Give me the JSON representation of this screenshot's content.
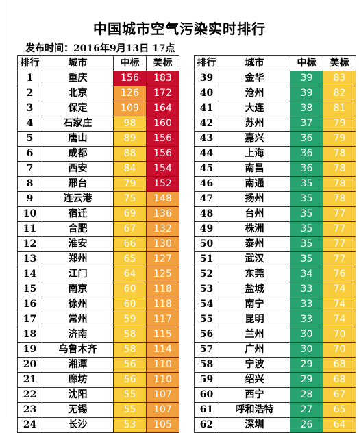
{
  "title": "中国城市空气污染实时排行",
  "publish_time": "发布时间：2016年9月13日 17点",
  "headers": {
    "rank": "排行",
    "city": "城市",
    "cn_index": "中标",
    "us_index": "美标"
  },
  "colors": {
    "red": "#c8102e",
    "orange": "#f2a03d",
    "yellow": "#f8cc3c",
    "green": "#27a36f",
    "white": "#ffffff"
  },
  "left_rows": [
    {
      "rank": "1",
      "city": "重庆",
      "cn": "156",
      "us": "183",
      "cn_color": "red",
      "us_color": "red"
    },
    {
      "rank": "2",
      "city": "北京",
      "cn": "126",
      "us": "172",
      "cn_color": "orange",
      "us_color": "red"
    },
    {
      "rank": "3",
      "city": "保定",
      "cn": "109",
      "us": "164",
      "cn_color": "orange",
      "us_color": "red"
    },
    {
      "rank": "4",
      "city": "石家庄",
      "cn": "98",
      "us": "160",
      "cn_color": "yellow",
      "us_color": "red"
    },
    {
      "rank": "5",
      "city": "唐山",
      "cn": "89",
      "us": "156",
      "cn_color": "yellow",
      "us_color": "red"
    },
    {
      "rank": "6",
      "city": "成都",
      "cn": "88",
      "us": "156",
      "cn_color": "yellow",
      "us_color": "red"
    },
    {
      "rank": "7",
      "city": "西安",
      "cn": "84",
      "us": "154",
      "cn_color": "yellow",
      "us_color": "red"
    },
    {
      "rank": "8",
      "city": "邢台",
      "cn": "79",
      "us": "152",
      "cn_color": "yellow",
      "us_color": "red"
    },
    {
      "rank": "9",
      "city": "连云港",
      "cn": "75",
      "us": "148",
      "cn_color": "yellow",
      "us_color": "orange"
    },
    {
      "rank": "10",
      "city": "宿迁",
      "cn": "69",
      "us": "136",
      "cn_color": "yellow",
      "us_color": "orange"
    },
    {
      "rank": "11",
      "city": "合肥",
      "cn": "67",
      "us": "132",
      "cn_color": "yellow",
      "us_color": "orange"
    },
    {
      "rank": "12",
      "city": "淮安",
      "cn": "66",
      "us": "130",
      "cn_color": "yellow",
      "us_color": "orange"
    },
    {
      "rank": "13",
      "city": "郑州",
      "cn": "65",
      "us": "127",
      "cn_color": "yellow",
      "us_color": "orange"
    },
    {
      "rank": "14",
      "city": "江门",
      "cn": "64",
      "us": "125",
      "cn_color": "yellow",
      "us_color": "orange"
    },
    {
      "rank": "15",
      "city": "南京",
      "cn": "60",
      "us": "118",
      "cn_color": "yellow",
      "us_color": "orange"
    },
    {
      "rank": "16",
      "city": "徐州",
      "cn": "60",
      "us": "118",
      "cn_color": "yellow",
      "us_color": "orange"
    },
    {
      "rank": "17",
      "city": "常州",
      "cn": "59",
      "us": "117",
      "cn_color": "yellow",
      "us_color": "orange"
    },
    {
      "rank": "18",
      "city": "济南",
      "cn": "58",
      "us": "115",
      "cn_color": "yellow",
      "us_color": "orange"
    },
    {
      "rank": "19",
      "city": "乌鲁木齐",
      "cn": "58",
      "us": "114",
      "cn_color": "yellow",
      "us_color": "orange"
    },
    {
      "rank": "20",
      "city": "湘潭",
      "cn": "56",
      "us": "110",
      "cn_color": "yellow",
      "us_color": "orange"
    },
    {
      "rank": "21",
      "city": "廊坊",
      "cn": "56",
      "us": "110",
      "cn_color": "yellow",
      "us_color": "orange"
    },
    {
      "rank": "22",
      "city": "沈阳",
      "cn": "55",
      "us": "107",
      "cn_color": "yellow",
      "us_color": "orange"
    },
    {
      "rank": "23",
      "city": "无锡",
      "cn": "55",
      "us": "107",
      "cn_color": "yellow",
      "us_color": "orange"
    },
    {
      "rank": "24",
      "city": "长沙",
      "cn": "53",
      "us": "105",
      "cn_color": "yellow",
      "us_color": "orange"
    }
  ],
  "right_rows": [
    {
      "rank": "39",
      "city": "金华",
      "cn": "39",
      "us": "83",
      "cn_color": "green",
      "us_color": "yellow"
    },
    {
      "rank": "40",
      "city": "沧州",
      "cn": "39",
      "us": "82",
      "cn_color": "green",
      "us_color": "yellow"
    },
    {
      "rank": "41",
      "city": "大连",
      "cn": "38",
      "us": "81",
      "cn_color": "green",
      "us_color": "yellow"
    },
    {
      "rank": "42",
      "city": "苏州",
      "cn": "37",
      "us": "79",
      "cn_color": "green",
      "us_color": "yellow"
    },
    {
      "rank": "43",
      "city": "嘉兴",
      "cn": "36",
      "us": "79",
      "cn_color": "green",
      "us_color": "yellow"
    },
    {
      "rank": "44",
      "city": "上海",
      "cn": "36",
      "us": "78",
      "cn_color": "green",
      "us_color": "yellow"
    },
    {
      "rank": "45",
      "city": "南昌",
      "cn": "36",
      "us": "78",
      "cn_color": "green",
      "us_color": "yellow"
    },
    {
      "rank": "46",
      "city": "南通",
      "cn": "35",
      "us": "78",
      "cn_color": "green",
      "us_color": "yellow"
    },
    {
      "rank": "47",
      "city": "扬州",
      "cn": "35",
      "us": "78",
      "cn_color": "green",
      "us_color": "yellow"
    },
    {
      "rank": "48",
      "city": "台州",
      "cn": "35",
      "us": "77",
      "cn_color": "green",
      "us_color": "yellow"
    },
    {
      "rank": "49",
      "city": "株洲",
      "cn": "35",
      "us": "77",
      "cn_color": "green",
      "us_color": "yellow"
    },
    {
      "rank": "50",
      "city": "泰州",
      "cn": "35",
      "us": "77",
      "cn_color": "green",
      "us_color": "yellow"
    },
    {
      "rank": "51",
      "city": "武汉",
      "cn": "35",
      "us": "77",
      "cn_color": "green",
      "us_color": "yellow"
    },
    {
      "rank": "52",
      "city": "东莞",
      "cn": "34",
      "us": "76",
      "cn_color": "green",
      "us_color": "yellow"
    },
    {
      "rank": "53",
      "city": "盐城",
      "cn": "33",
      "us": "74",
      "cn_color": "green",
      "us_color": "yellow"
    },
    {
      "rank": "54",
      "city": "南宁",
      "cn": "33",
      "us": "74",
      "cn_color": "green",
      "us_color": "yellow"
    },
    {
      "rank": "55",
      "city": "昆明",
      "cn": "33",
      "us": "74",
      "cn_color": "green",
      "us_color": "yellow"
    },
    {
      "rank": "56",
      "city": "兰州",
      "cn": "30",
      "us": "70",
      "cn_color": "green",
      "us_color": "yellow"
    },
    {
      "rank": "57",
      "city": "广州",
      "cn": "30",
      "us": "70",
      "cn_color": "green",
      "us_color": "yellow"
    },
    {
      "rank": "58",
      "city": "宁波",
      "cn": "29",
      "us": "68",
      "cn_color": "green",
      "us_color": "yellow"
    },
    {
      "rank": "59",
      "city": "绍兴",
      "cn": "29",
      "us": "68",
      "cn_color": "green",
      "us_color": "yellow"
    },
    {
      "rank": "60",
      "city": "西宁",
      "cn": "28",
      "us": "67",
      "cn_color": "green",
      "us_color": "yellow"
    },
    {
      "rank": "61",
      "city": "呼和浩特",
      "cn": "27",
      "us": "65",
      "cn_color": "green",
      "us_color": "yellow"
    },
    {
      "rank": "62",
      "city": "深圳",
      "cn": "26",
      "us": "64",
      "cn_color": "green",
      "us_color": "yellow"
    }
  ]
}
